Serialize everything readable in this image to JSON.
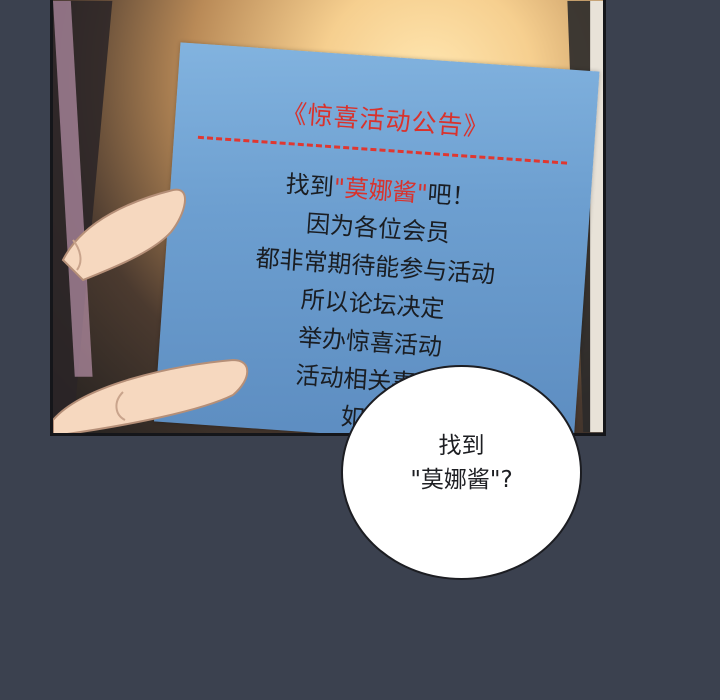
{
  "notice": {
    "title": "《惊喜活动公告》",
    "line1": {
      "prefix": "找到",
      "highlight": "\"莫娜酱\"",
      "suffix": "吧！"
    },
    "lines": [
      "因为各位会员",
      "都非常期待能参与活动",
      "所以论坛决定",
      "举办惊喜活动",
      "活动相关事项",
      "如下"
    ]
  },
  "bubble": {
    "line1": "找到",
    "line2": "\"莫娜酱\"?"
  }
}
